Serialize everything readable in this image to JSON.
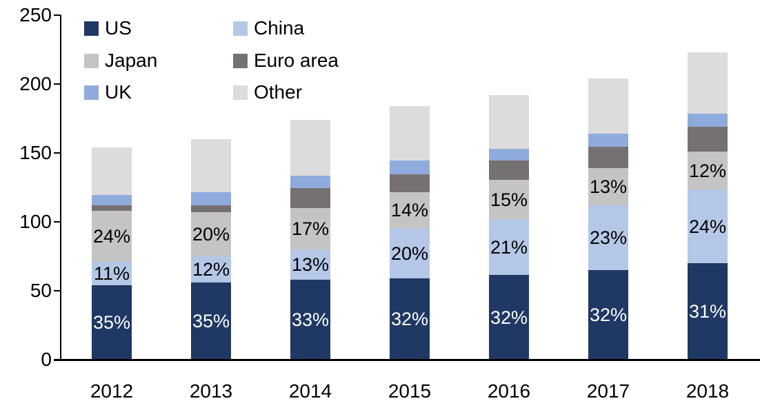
{
  "chart_data": {
    "type": "bar",
    "stacked": true,
    "title": "",
    "xlabel": "",
    "ylabel": "",
    "categories": [
      "2012",
      "2013",
      "2014",
      "2015",
      "2016",
      "2017",
      "2018"
    ],
    "series": [
      {
        "name": "US",
        "color": "#1f3864",
        "values": [
          54,
          56,
          58,
          59,
          61.5,
          65,
          70
        ],
        "labels": [
          "35%",
          "35%",
          "33%",
          "32%",
          "32%",
          "32%",
          "31%"
        ],
        "label_color": "#ffffff"
      },
      {
        "name": "China",
        "color": "#b4c7e7",
        "values": [
          17,
          19,
          22,
          36.5,
          40.5,
          47,
          53.5
        ],
        "labels": [
          "11%",
          "12%",
          "13%",
          "20%",
          "21%",
          "23%",
          "24%"
        ],
        "label_color": "#000000"
      },
      {
        "name": "Japan",
        "color": "#c4c4c4",
        "values": [
          37,
          32,
          30,
          26,
          28.5,
          27,
          27.5
        ],
        "labels": [
          "24%",
          "20%",
          "17%",
          "14%",
          "15%",
          "13%",
          "12%"
        ],
        "label_color": "#000000"
      },
      {
        "name": "Euro area",
        "color": "#767171",
        "values": [
          4,
          5,
          14.5,
          13,
          14,
          15.5,
          18
        ],
        "labels": [
          "",
          "",
          "",
          "",
          "",
          "",
          ""
        ],
        "label_color": "#000000"
      },
      {
        "name": "UK",
        "color": "#8faadc",
        "values": [
          7.5,
          9.5,
          9,
          10,
          8.5,
          9.5,
          9.5
        ],
        "labels": [
          "",
          "",
          "",
          "",
          "",
          "",
          ""
        ],
        "label_color": "#000000"
      },
      {
        "name": "Other",
        "color": "#dcdcdc",
        "values": [
          34.5,
          38.5,
          40.5,
          39.5,
          39,
          40,
          44.5
        ],
        "labels": [
          "",
          "",
          "",
          "",
          "",
          "",
          ""
        ],
        "label_color": "#000000"
      }
    ],
    "totals": [
      154,
      160,
      174,
      184,
      192,
      204,
      223
    ],
    "ylim": [
      0,
      250
    ],
    "yticks": [
      0,
      50,
      100,
      150,
      200,
      250
    ],
    "grid": false,
    "axis_color": "#000000",
    "legend_position": "top-left",
    "legend_columns": 2,
    "legend_order": [
      "US",
      "China",
      "Japan",
      "Euro area",
      "UK",
      "Other"
    ]
  }
}
